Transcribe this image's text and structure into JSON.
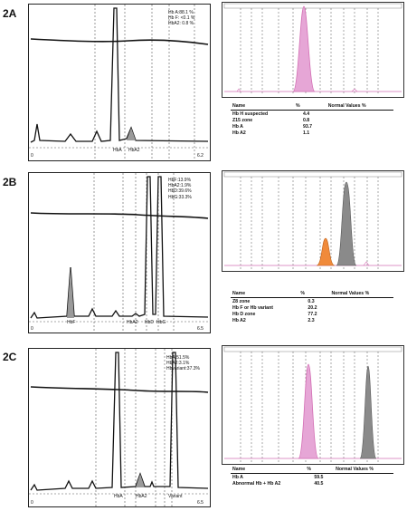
{
  "colors": {
    "line": "#111111",
    "fill_grey": "#9a9a9a",
    "pink": "#d36fb4",
    "pink_fill": "#e6a6d6",
    "orange": "#f08a3a",
    "gray_peak": "#8a8a8a"
  },
  "panels": [
    {
      "label": "2A",
      "hplc_legend": [
        "Hb A:88.1 %",
        "Hb F: <0.1 %",
        "HbA2: 0.8 %"
      ],
      "hplc_peak_labels": [
        "HbA",
        "HbA2"
      ],
      "hplc_axis": [
        "0",
        "6.2"
      ],
      "table": {
        "headers": [
          "Name",
          "%",
          "Normal Values %"
        ],
        "rows": [
          [
            "Hb H suspected",
            "4.4"
          ],
          [
            "Z15 zone",
            "0.8"
          ],
          [
            "Hb A",
            "93.7"
          ],
          [
            "Hb A2",
            "1.1"
          ]
        ]
      }
    },
    {
      "label": "2B",
      "hplc_legend": [
        "HbF:13.9%",
        "HbA2:1.9%",
        "HbD:39.6%",
        "HbG:33.3%"
      ],
      "hplc_peak_labels": [
        "HbF",
        "HbA2",
        "HbD",
        "HbG"
      ],
      "hplc_axis": [
        "0",
        "6.5"
      ],
      "table": {
        "headers": [
          "Name",
          "%",
          "Normal Values %"
        ],
        "rows": [
          [
            "Z8 zone",
            "0.3"
          ],
          [
            "Hb F or Hb variant",
            "20.2"
          ],
          [
            "Hb D zone",
            "77.2"
          ],
          [
            "Hb A2",
            "2.3"
          ]
        ]
      }
    },
    {
      "label": "2C",
      "hplc_legend": [
        "HbA:51.5%",
        "HbA2:3.1%",
        "Hbvariant:37.3%"
      ],
      "hplc_peak_labels": [
        "HbA",
        "HbA2",
        "Variant"
      ],
      "hplc_axis": [
        "0",
        "6.5"
      ],
      "table": {
        "headers": [
          "Name",
          "%",
          "Normal Values %"
        ],
        "rows": [
          [
            "Hb A",
            "59.5"
          ],
          [
            "Abnormal Hb + Hb A2",
            "40.5"
          ]
        ]
      }
    }
  ],
  "chart_data": [
    {
      "type": "line",
      "panel": "2A",
      "ylabel": "",
      "xlabel": "",
      "series": [
        {
          "peaks": [
            {
              "label": "HbA",
              "relative_height": 1.0
            },
            {
              "label": "HbA2",
              "relative_height": 0.12
            }
          ]
        }
      ]
    },
    {
      "type": "area",
      "panel": "2A capillary",
      "series": [
        {
          "name": "Hb A",
          "value": 93.7
        },
        {
          "name": "Hb H suspected",
          "value": 4.4
        },
        {
          "name": "Z15 zone",
          "value": 0.8
        },
        {
          "name": "Hb A2",
          "value": 1.1
        }
      ]
    },
    {
      "type": "line",
      "panel": "2B",
      "series": [
        {
          "peaks": [
            {
              "label": "HbF",
              "relative_height": 0.38
            },
            {
              "label": "HbA2",
              "relative_height": 0.05
            },
            {
              "label": "HbD",
              "relative_height": 1.0
            },
            {
              "label": "HbG",
              "relative_height": 1.0
            }
          ]
        }
      ]
    },
    {
      "type": "area",
      "panel": "2B capillary",
      "series": [
        {
          "name": "Z8 zone",
          "value": 0.3
        },
        {
          "name": "Hb F or Hb variant",
          "value": 20.2
        },
        {
          "name": "Hb D zone",
          "value": 77.2
        },
        {
          "name": "Hb A2",
          "value": 2.3
        }
      ]
    },
    {
      "type": "line",
      "panel": "2C",
      "series": [
        {
          "peaks": [
            {
              "label": "HbA",
              "relative_height": 1.0
            },
            {
              "label": "HbA2",
              "relative_height": 0.08
            },
            {
              "label": "Variant",
              "relative_height": 1.0
            }
          ]
        }
      ]
    },
    {
      "type": "area",
      "panel": "2C capillary",
      "series": [
        {
          "name": "Hb A",
          "value": 59.5
        },
        {
          "name": "Abnormal Hb + Hb A2",
          "value": 40.5
        }
      ]
    }
  ]
}
